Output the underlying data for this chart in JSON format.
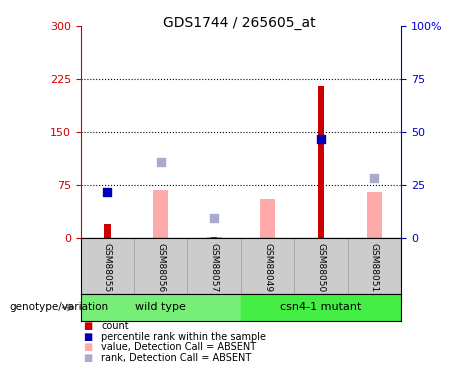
{
  "title": "GDS1744 / 265605_at",
  "samples": [
    "GSM88055",
    "GSM88056",
    "GSM88057",
    "GSM88049",
    "GSM88050",
    "GSM88051"
  ],
  "left_ylim": [
    0,
    300
  ],
  "left_yticks": [
    0,
    75,
    150,
    225,
    300
  ],
  "right_ylim": [
    0,
    100
  ],
  "right_yticks": [
    0,
    25,
    50,
    75,
    100
  ],
  "right_yticklabels": [
    "0",
    "25",
    "50",
    "75",
    "100%"
  ],
  "left_axis_color": "#cc0000",
  "right_axis_color": "#0000cc",
  "count_bars": {
    "GSM88055": 20,
    "GSM88056": 0,
    "GSM88057": 2,
    "GSM88049": 0,
    "GSM88050": 215,
    "GSM88051": 0
  },
  "percentile_rank_left": {
    "GSM88055": 65,
    "GSM88056": null,
    "GSM88057": null,
    "GSM88049": null,
    "GSM88050": 140,
    "GSM88051": null
  },
  "value_absent_bars": {
    "GSM88055": null,
    "GSM88056": 68,
    "GSM88057": 2,
    "GSM88049": 55,
    "GSM88050": null,
    "GSM88051": 65
  },
  "rank_absent_left": {
    "GSM88055": null,
    "GSM88056": 108,
    "GSM88057": 28,
    "GSM88049": null,
    "GSM88050": null,
    "GSM88051": 85
  },
  "count_bar_color": "#cc0000",
  "percentile_color": "#0000bb",
  "value_absent_color": "#ffaaaa",
  "rank_absent_color": "#aaaacc",
  "grid_yticks": [
    75,
    150,
    225
  ],
  "background_color": "#ffffff",
  "label_area_color": "#cccccc",
  "group_wt_color": "#77ee77",
  "group_mut_color": "#44ee44",
  "wt_label": "wild type",
  "mut_label": "csn4-1 mutant",
  "genotype_label": "genotype/variation",
  "legend_items": [
    {
      "color": "#cc0000",
      "label": "count"
    },
    {
      "color": "#0000bb",
      "label": "percentile rank within the sample"
    },
    {
      "color": "#ffaaaa",
      "label": "value, Detection Call = ABSENT"
    },
    {
      "color": "#aaaacc",
      "label": "rank, Detection Call = ABSENT"
    }
  ]
}
